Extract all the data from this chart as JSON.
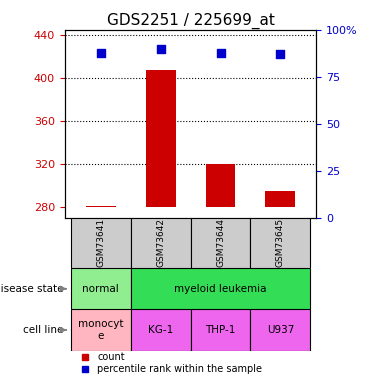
{
  "title": "GDS2251 / 225699_at",
  "samples": [
    "GSM73641",
    "GSM73642",
    "GSM73644",
    "GSM73645"
  ],
  "count_values": [
    281,
    408,
    320,
    295
  ],
  "percentile_values": [
    88,
    90,
    88,
    87
  ],
  "ylim_left": [
    270,
    445
  ],
  "ylim_right": [
    0,
    100
  ],
  "yticks_left": [
    280,
    320,
    360,
    400,
    440
  ],
  "yticks_right": [
    0,
    25,
    50,
    75,
    100
  ],
  "bar_color": "#cc0000",
  "marker_color": "#0000cc",
  "left_axis_color": "#cc0000",
  "right_axis_color": "#0000cc",
  "disease_normal_color": "#90ee90",
  "disease_leukemia_color": "#33dd55",
  "cell_monocyte_color": "#ffb6c1",
  "cell_kgthpu_color": "#ee66ee",
  "sample_bg_color": "#cccccc",
  "legend_count_color": "#cc0000",
  "legend_percentile_color": "#0000cc",
  "baseline": 280
}
